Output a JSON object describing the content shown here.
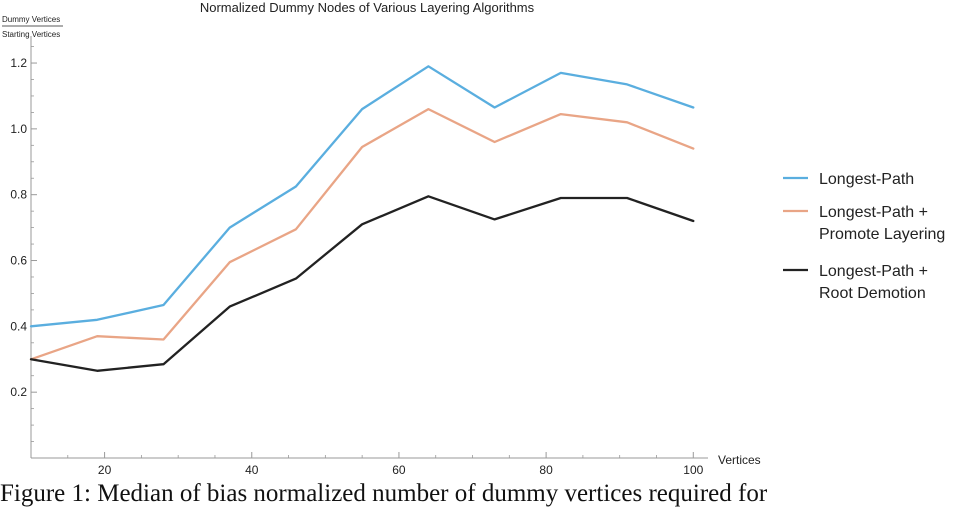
{
  "chart_data": {
    "type": "line",
    "title": "Normalized Dummy Nodes of Various Layering Algorithms",
    "ylabel_numerator": "Dummy Vertices",
    "ylabel_denominator": "Starting Vertices",
    "xlabel": "Vertices",
    "xlim": [
      10,
      102
    ],
    "ylim": [
      0.0,
      1.27
    ],
    "xticks": [
      20,
      40,
      60,
      80,
      100
    ],
    "yticks": [
      0.2,
      0.4,
      0.6,
      0.8,
      1.0,
      1.2
    ],
    "xtick_labels": [
      "20",
      "40",
      "60",
      "80",
      "100"
    ],
    "ytick_labels": [
      "0.2",
      "0.4",
      "0.6",
      "0.8",
      "1.0",
      "1.2"
    ],
    "grid": false,
    "legend_position": "right",
    "x": [
      10,
      19,
      28,
      37,
      46,
      55,
      64,
      73,
      82,
      91,
      100
    ],
    "series": [
      {
        "name": "Longest-Path",
        "legend_lines": [
          "Longest-Path"
        ],
        "color": "#5aaedf",
        "values": [
          0.4,
          0.42,
          0.465,
          0.7,
          0.825,
          1.06,
          1.19,
          1.065,
          1.17,
          1.135,
          1.065
        ]
      },
      {
        "name": "Longest-Path + Promote Layering",
        "legend_lines": [
          "Longest-Path +",
          "Promote Layering"
        ],
        "color": "#e9a586",
        "values": [
          0.3,
          0.37,
          0.36,
          0.595,
          0.695,
          0.945,
          1.06,
          0.96,
          1.045,
          1.02,
          0.94
        ]
      },
      {
        "name": "Longest-Path + Root Demotion",
        "legend_lines": [
          "Longest-Path +",
          "Root Demotion"
        ],
        "color": "#222222",
        "values": [
          0.3,
          0.265,
          0.285,
          0.46,
          0.545,
          0.71,
          0.795,
          0.725,
          0.79,
          0.79,
          0.72
        ]
      }
    ]
  },
  "caption": "Figure 1: Median of bias normalized number of dummy vertices required for"
}
